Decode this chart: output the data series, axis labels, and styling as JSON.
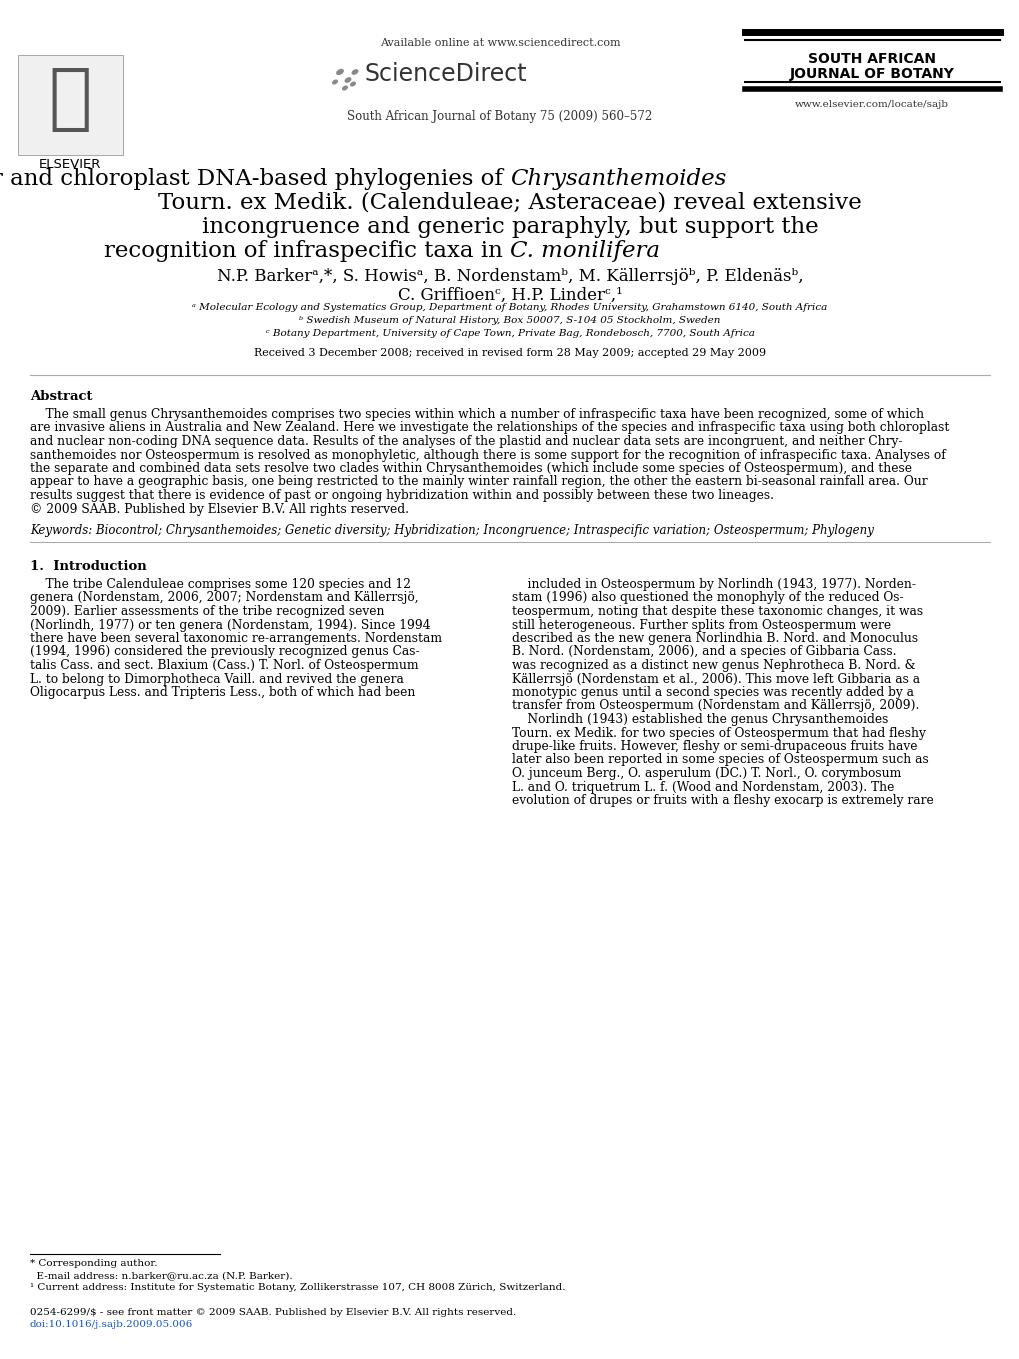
{
  "bg_color": "#ffffff",
  "header_available": "Available online at www.sciencedirect.com",
  "header_sciencedirect": "ScienceDirect",
  "header_journal_ref": "South African Journal of Botany 75 (2009) 560–572",
  "header_journal1": "SOUTH AFRICAN",
  "header_journal2": "JOURNAL OF BOTANY",
  "header_website": "www.elsevier.com/locate/sajb",
  "elsevier_text": "ELSEVIER",
  "title_line1_roman": "Nuclear and chloroplast DNA-based phylogenies of ",
  "title_line1_italic": "Chrysanthemoides",
  "title_line2": "Tourn. ex Medik. (Calenduleae; Asteraceae) reveal extensive",
  "title_line3": "incongruence and generic paraphyly, but support the",
  "title_line4_roman": "recognition of infraspecific taxa in ",
  "title_line4_italic": "C. monilifera",
  "author_line1": "N.P. Barkerᵃ,*, S. Howisᵃ, B. Nordenstamᵇ, M. Källerrsjöᵇ, P. Eldenäsᵇ,",
  "author_line2": "C. Griffioenᶜ, H.P. Linderᶜ,¹",
  "aff_a": "ᵃ Molecular Ecology and Systematics Group, Department of Botany, Rhodes University, Grahamstown 6140, South Africa",
  "aff_b": "ᵇ Swedish Museum of Natural History, Box 50007, S-104 05 Stockholm, Sweden",
  "aff_c": "ᶜ Botany Department, University of Cape Town, Private Bag, Rondebosch, 7700, South Africa",
  "received": "Received 3 December 2008; received in revised form 28 May 2009; accepted 29 May 2009",
  "abstract_title": "Abstract",
  "abstract_line1": "    The small genus Chrysanthemoides comprises two species within which a number of infraspecific taxa have been recognized, some of which",
  "abstract_line2": "are invasive aliens in Australia and New Zealand. Here we investigate the relationships of the species and infraspecific taxa using both chloroplast",
  "abstract_line3": "and nuclear non-coding DNA sequence data. Results of the analyses of the plastid and nuclear data sets are incongruent, and neither Chry-",
  "abstract_line4": "santhemoides nor Osteospermum is resolved as monophyletic, although there is some support for the recognition of infraspecific taxa. Analyses of",
  "abstract_line5": "the separate and combined data sets resolve two clades within Chrysanthemoides (which include some species of Osteospermum), and these",
  "abstract_line6": "appear to have a geographic basis, one being restricted to the mainly winter rainfall region, the other the eastern bi-seasonal rainfall area. Our",
  "abstract_line7": "results suggest that there is evidence of past or ongoing hybridization within and possibly between these two lineages.",
  "abstract_line8": "© 2009 SAAB. Published by Elsevier B.V. All rights reserved.",
  "keywords": "Keywords: Biocontrol; Chrysanthemoides; Genetic diversity; Hybridization; Incongruence; Intraspecific variation; Osteospermum; Phylogeny",
  "intro_title": "1.  Introduction",
  "col1_lines": [
    "    The tribe Calenduleae comprises some 120 species and 12",
    "genera (Nordenstam, 2006, 2007; Nordenstam and Källerrsjö,",
    "2009). Earlier assessments of the tribe recognized seven",
    "(Norlindh, 1977) or ten genera (Nordenstam, 1994). Since 1994",
    "there have been several taxonomic re-arrangements. Nordenstam",
    "(1994, 1996) considered the previously recognized genus Cas-",
    "talis Cass. and sect. Blaxium (Cass.) T. Norl. of Osteospermum",
    "L. to belong to Dimorphotheca Vaill. and revived the genera",
    "Oligocarpus Less. and Tripteris Less., both of which had been"
  ],
  "col2_lines": [
    "    included in Osteospermum by Norlindh (1943, 1977). Norden-",
    "stam (1996) also questioned the monophyly of the reduced Os-",
    "teospermum, noting that despite these taxonomic changes, it was",
    "still heterogeneous. Further splits from Osteospermum were",
    "described as the new genera Norlindhia B. Nord. and Monoculus",
    "B. Nord. (Nordenstam, 2006), and a species of Gibbaria Cass.",
    "was recognized as a distinct new genus Nephrotheca B. Nord. &",
    "Källerrsjö (Nordenstam et al., 2006). This move left Gibbaria as a",
    "monotypic genus until a second species was recently added by a",
    "transfer from Osteospermum (Nordenstam and Källerrsjö, 2009).",
    "    Norlindh (1943) established the genus Chrysanthemoides",
    "Tourn. ex Medik. for two species of Osteospermum that had fleshy",
    "drupe-like fruits. However, fleshy or semi-drupaceous fruits have",
    "later also been reported in some species of Osteospermum such as",
    "O. junceum Berg., O. asperulum (DC.) T. Norl., O. corymbosum",
    "L. and O. triquetrum L. f. (Wood and Nordenstam, 2003). The",
    "evolution of drupes or fruits with a fleshy exocarp is extremely rare"
  ],
  "footnote_line": "* Corresponding author.",
  "footnote_email": "  E-mail address: n.barker@ru.ac.za (N.P. Barker).",
  "footnote_addr": "¹ Current address: Institute for Systematic Botany, Zollikerstrasse 107, CH 8008 Zürich, Switzerland.",
  "copyright": "0254-6299/$ - see front matter © 2009 SAAB. Published by Elsevier B.V. All rights reserved.",
  "doi": "doi:10.1016/j.sajb.2009.05.006",
  "doi_color": "#1155cc",
  "link_color": "#1155cc"
}
